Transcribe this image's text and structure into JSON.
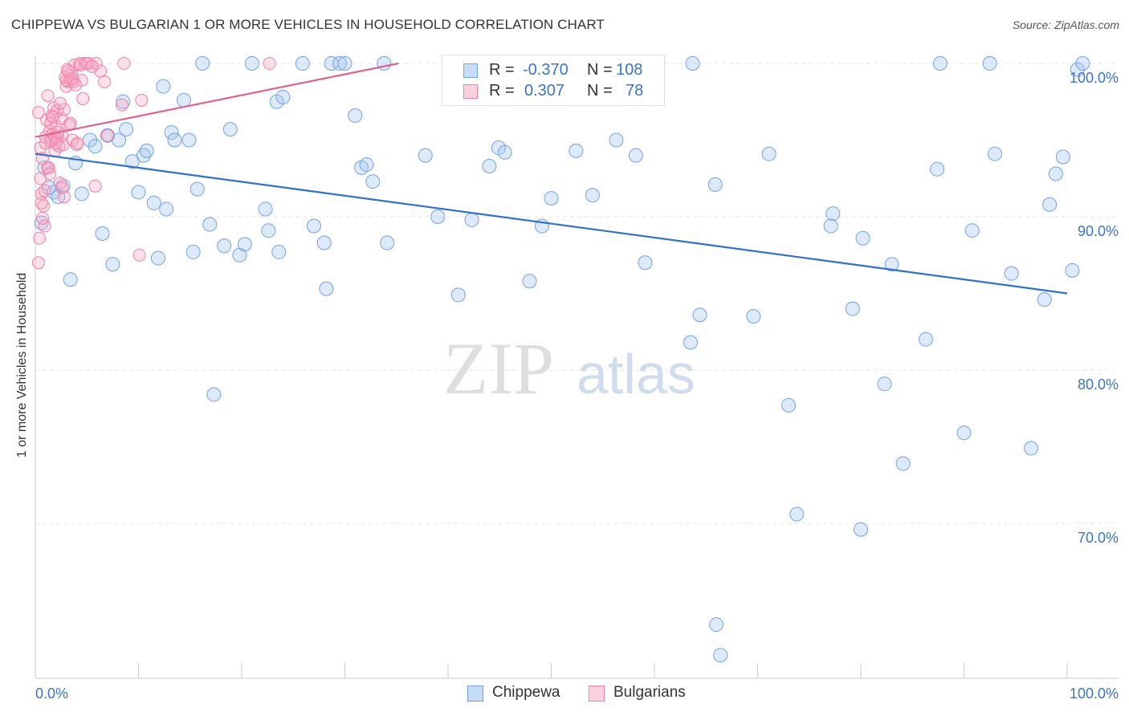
{
  "title": "CHIPPEWA VS BULGARIAN 1 OR MORE VEHICLES IN HOUSEHOLD CORRELATION CHART",
  "source": "Source: ZipAtlas.com",
  "watermark": {
    "zip": "ZIP",
    "atlas": "atlas"
  },
  "legend": {
    "rows": [
      {
        "r_label": "R =",
        "r_value": "-0.370",
        "n_label": "N =",
        "n_value": "108",
        "color": "#6fa3e8"
      },
      {
        "r_label": "R =",
        "r_value": "0.307",
        "n_label": "N =",
        "n_value": "78",
        "color": "#f27fa4"
      }
    ],
    "series_names": [
      "Chippewa",
      "Bulgarians"
    ]
  },
  "chart_data": {
    "type": "scatter",
    "title": "CHIPPEWA VS BULGARIAN 1 OR MORE VEHICLES IN HOUSEHOLD CORRELATION CHART",
    "xlabel": "",
    "ylabel": "1 or more Vehicles in Household",
    "xlim": [
      0,
      100
    ],
    "ylim": [
      59.5,
      100.5
    ],
    "x_tick_labels": [
      "0.0%",
      "100.0%"
    ],
    "y_ticks": [
      100,
      90,
      80,
      70
    ],
    "y_tick_labels": [
      "100.0%",
      "90.0%",
      "80.0%",
      "70.0%"
    ],
    "grid": true,
    "series": [
      {
        "name": "Chippewa",
        "color": "#6fa3e8",
        "trend": {
          "x": [
            0,
            100
          ],
          "y": [
            94.1,
            85.0
          ]
        },
        "points": [
          [
            0.6,
            89.6
          ],
          [
            0.9,
            93.2
          ],
          [
            1.3,
            91.9
          ],
          [
            1.8,
            91.6
          ],
          [
            2.2,
            91.3
          ],
          [
            2.7,
            92.0
          ],
          [
            3.4,
            85.9
          ],
          [
            3.9,
            93.5
          ],
          [
            4.5,
            91.5
          ],
          [
            5.3,
            95.0
          ],
          [
            5.8,
            94.6
          ],
          [
            6.5,
            88.9
          ],
          [
            7.0,
            95.3
          ],
          [
            7.5,
            86.9
          ],
          [
            8.1,
            95.0
          ],
          [
            8.5,
            97.5
          ],
          [
            8.8,
            95.7
          ],
          [
            9.4,
            93.6
          ],
          [
            10.0,
            91.6
          ],
          [
            10.5,
            94.0
          ],
          [
            10.8,
            94.3
          ],
          [
            11.5,
            90.9
          ],
          [
            11.9,
            87.3
          ],
          [
            12.4,
            98.5
          ],
          [
            12.7,
            90.5
          ],
          [
            13.2,
            95.5
          ],
          [
            13.5,
            95.0
          ],
          [
            14.4,
            97.6
          ],
          [
            14.9,
            95.0
          ],
          [
            15.3,
            87.7
          ],
          [
            15.7,
            91.8
          ],
          [
            16.2,
            100
          ],
          [
            16.9,
            89.5
          ],
          [
            17.3,
            78.4
          ],
          [
            18.3,
            88.1
          ],
          [
            18.9,
            95.7
          ],
          [
            19.8,
            87.5
          ],
          [
            20.3,
            88.2
          ],
          [
            21.0,
            100
          ],
          [
            22.3,
            90.5
          ],
          [
            22.6,
            89.1
          ],
          [
            23.4,
            97.5
          ],
          [
            23.6,
            87.7
          ],
          [
            24.0,
            97.8
          ],
          [
            25.9,
            100
          ],
          [
            27.0,
            89.4
          ],
          [
            28.0,
            88.3
          ],
          [
            28.2,
            85.3
          ],
          [
            28.7,
            100
          ],
          [
            29.5,
            100
          ],
          [
            30.0,
            100
          ],
          [
            31.0,
            96.6
          ],
          [
            31.6,
            93.2
          ],
          [
            32.1,
            93.4
          ],
          [
            32.7,
            92.3
          ],
          [
            33.8,
            100
          ],
          [
            34.1,
            88.3
          ],
          [
            37.8,
            94.0
          ],
          [
            39.0,
            90.0
          ],
          [
            41.0,
            84.9
          ],
          [
            42.3,
            89.8
          ],
          [
            44.0,
            93.3
          ],
          [
            44.9,
            94.5
          ],
          [
            45.0,
            100
          ],
          [
            45.5,
            94.2
          ],
          [
            47.9,
            85.8
          ],
          [
            49.1,
            89.4
          ],
          [
            50.0,
            91.2
          ],
          [
            52.4,
            94.3
          ],
          [
            53.4,
            100
          ],
          [
            54.0,
            91.4
          ],
          [
            56.3,
            95.0
          ],
          [
            58.2,
            94.0
          ],
          [
            59.1,
            87.0
          ],
          [
            63.5,
            81.8
          ],
          [
            63.7,
            100
          ],
          [
            64.4,
            83.6
          ],
          [
            65.9,
            92.1
          ],
          [
            66.0,
            63.4
          ],
          [
            66.4,
            61.4
          ],
          [
            69.6,
            83.5
          ],
          [
            71.1,
            94.1
          ],
          [
            73.0,
            77.7
          ],
          [
            73.8,
            70.6
          ],
          [
            77.1,
            89.4
          ],
          [
            77.3,
            90.2
          ],
          [
            79.2,
            84.0
          ],
          [
            80.0,
            69.6
          ],
          [
            80.2,
            88.6
          ],
          [
            82.3,
            79.1
          ],
          [
            83.0,
            86.9
          ],
          [
            84.1,
            73.9
          ],
          [
            86.3,
            82.0
          ],
          [
            87.4,
            93.1
          ],
          [
            87.7,
            100
          ],
          [
            90.0,
            75.9
          ],
          [
            90.8,
            89.1
          ],
          [
            92.5,
            100
          ],
          [
            93.0,
            94.1
          ],
          [
            94.6,
            86.3
          ],
          [
            96.5,
            74.9
          ],
          [
            97.8,
            84.6
          ],
          [
            98.3,
            90.8
          ],
          [
            98.9,
            92.8
          ],
          [
            99.6,
            93.9
          ],
          [
            100.5,
            86.5
          ],
          [
            101.0,
            99.6
          ],
          [
            101.5,
            100
          ]
        ]
      },
      {
        "name": "Bulgarians",
        "color": "#f27fa4",
        "trend": {
          "x": [
            0,
            35.2
          ],
          "y": [
            95.2,
            100.0
          ]
        },
        "points": [
          [
            0.3,
            96.8
          ],
          [
            0.5,
            94.5
          ],
          [
            0.6,
            91.5
          ],
          [
            0.7,
            93.8
          ],
          [
            0.8,
            90.7
          ],
          [
            0.9,
            89.4
          ],
          [
            1.0,
            95.2
          ],
          [
            1.1,
            96.3
          ],
          [
            1.2,
            97.9
          ],
          [
            1.3,
            93.2
          ],
          [
            1.4,
            95.6
          ],
          [
            1.5,
            94.9
          ],
          [
            1.6,
            96.6
          ],
          [
            1.7,
            95.4
          ],
          [
            1.8,
            97.1
          ],
          [
            1.9,
            94.3
          ],
          [
            2.0,
            95.9
          ],
          [
            2.1,
            96.9
          ],
          [
            2.2,
            95.1
          ],
          [
            2.3,
            94.6
          ],
          [
            2.4,
            92.2
          ],
          [
            2.5,
            96.4
          ],
          [
            2.6,
            95.3
          ],
          [
            2.7,
            94.7
          ],
          [
            2.8,
            97.0
          ],
          [
            2.9,
            99.1
          ],
          [
            3.0,
            98.5
          ],
          [
            3.1,
            99.6
          ],
          [
            3.2,
            98.8
          ],
          [
            3.3,
            96.0
          ],
          [
            3.4,
            98.9
          ],
          [
            3.5,
            99.4
          ],
          [
            3.6,
            95.0
          ],
          [
            3.7,
            98.8
          ],
          [
            3.8,
            99.9
          ],
          [
            4.0,
            94.7
          ],
          [
            4.3,
            100
          ],
          [
            4.5,
            98.9
          ],
          [
            4.6,
            97.7
          ],
          [
            4.8,
            100
          ],
          [
            5.2,
            100
          ],
          [
            5.8,
            92.0
          ],
          [
            5.9,
            100
          ],
          [
            6.3,
            99.5
          ],
          [
            6.7,
            98.8
          ],
          [
            7.0,
            95.3
          ],
          [
            8.4,
            97.3
          ],
          [
            8.6,
            100
          ],
          [
            10.1,
            87.5
          ],
          [
            10.3,
            97.6
          ],
          [
            22.7,
            100
          ],
          [
            0.4,
            88.6
          ],
          [
            0.5,
            92.5
          ],
          [
            0.6,
            90.9
          ],
          [
            0.9,
            91.7
          ],
          [
            1.0,
            94.8
          ],
          [
            1.2,
            93.2
          ],
          [
            1.4,
            92.8
          ],
          [
            1.5,
            96.1
          ],
          [
            1.6,
            95.0
          ],
          [
            1.7,
            96.5
          ],
          [
            1.9,
            95.2
          ],
          [
            2.0,
            94.8
          ],
          [
            2.2,
            95.5
          ],
          [
            2.4,
            97.4
          ],
          [
            2.6,
            91.9
          ],
          [
            2.8,
            91.3
          ],
          [
            3.0,
            98.9
          ],
          [
            3.2,
            99.5
          ],
          [
            3.4,
            96.1
          ],
          [
            3.6,
            99.0
          ],
          [
            3.9,
            98.6
          ],
          [
            4.1,
            94.8
          ],
          [
            4.4,
            99.9
          ],
          [
            5.0,
            100
          ],
          [
            5.5,
            99.8
          ],
          [
            0.3,
            87.0
          ],
          [
            0.7,
            89.9
          ]
        ]
      }
    ]
  }
}
